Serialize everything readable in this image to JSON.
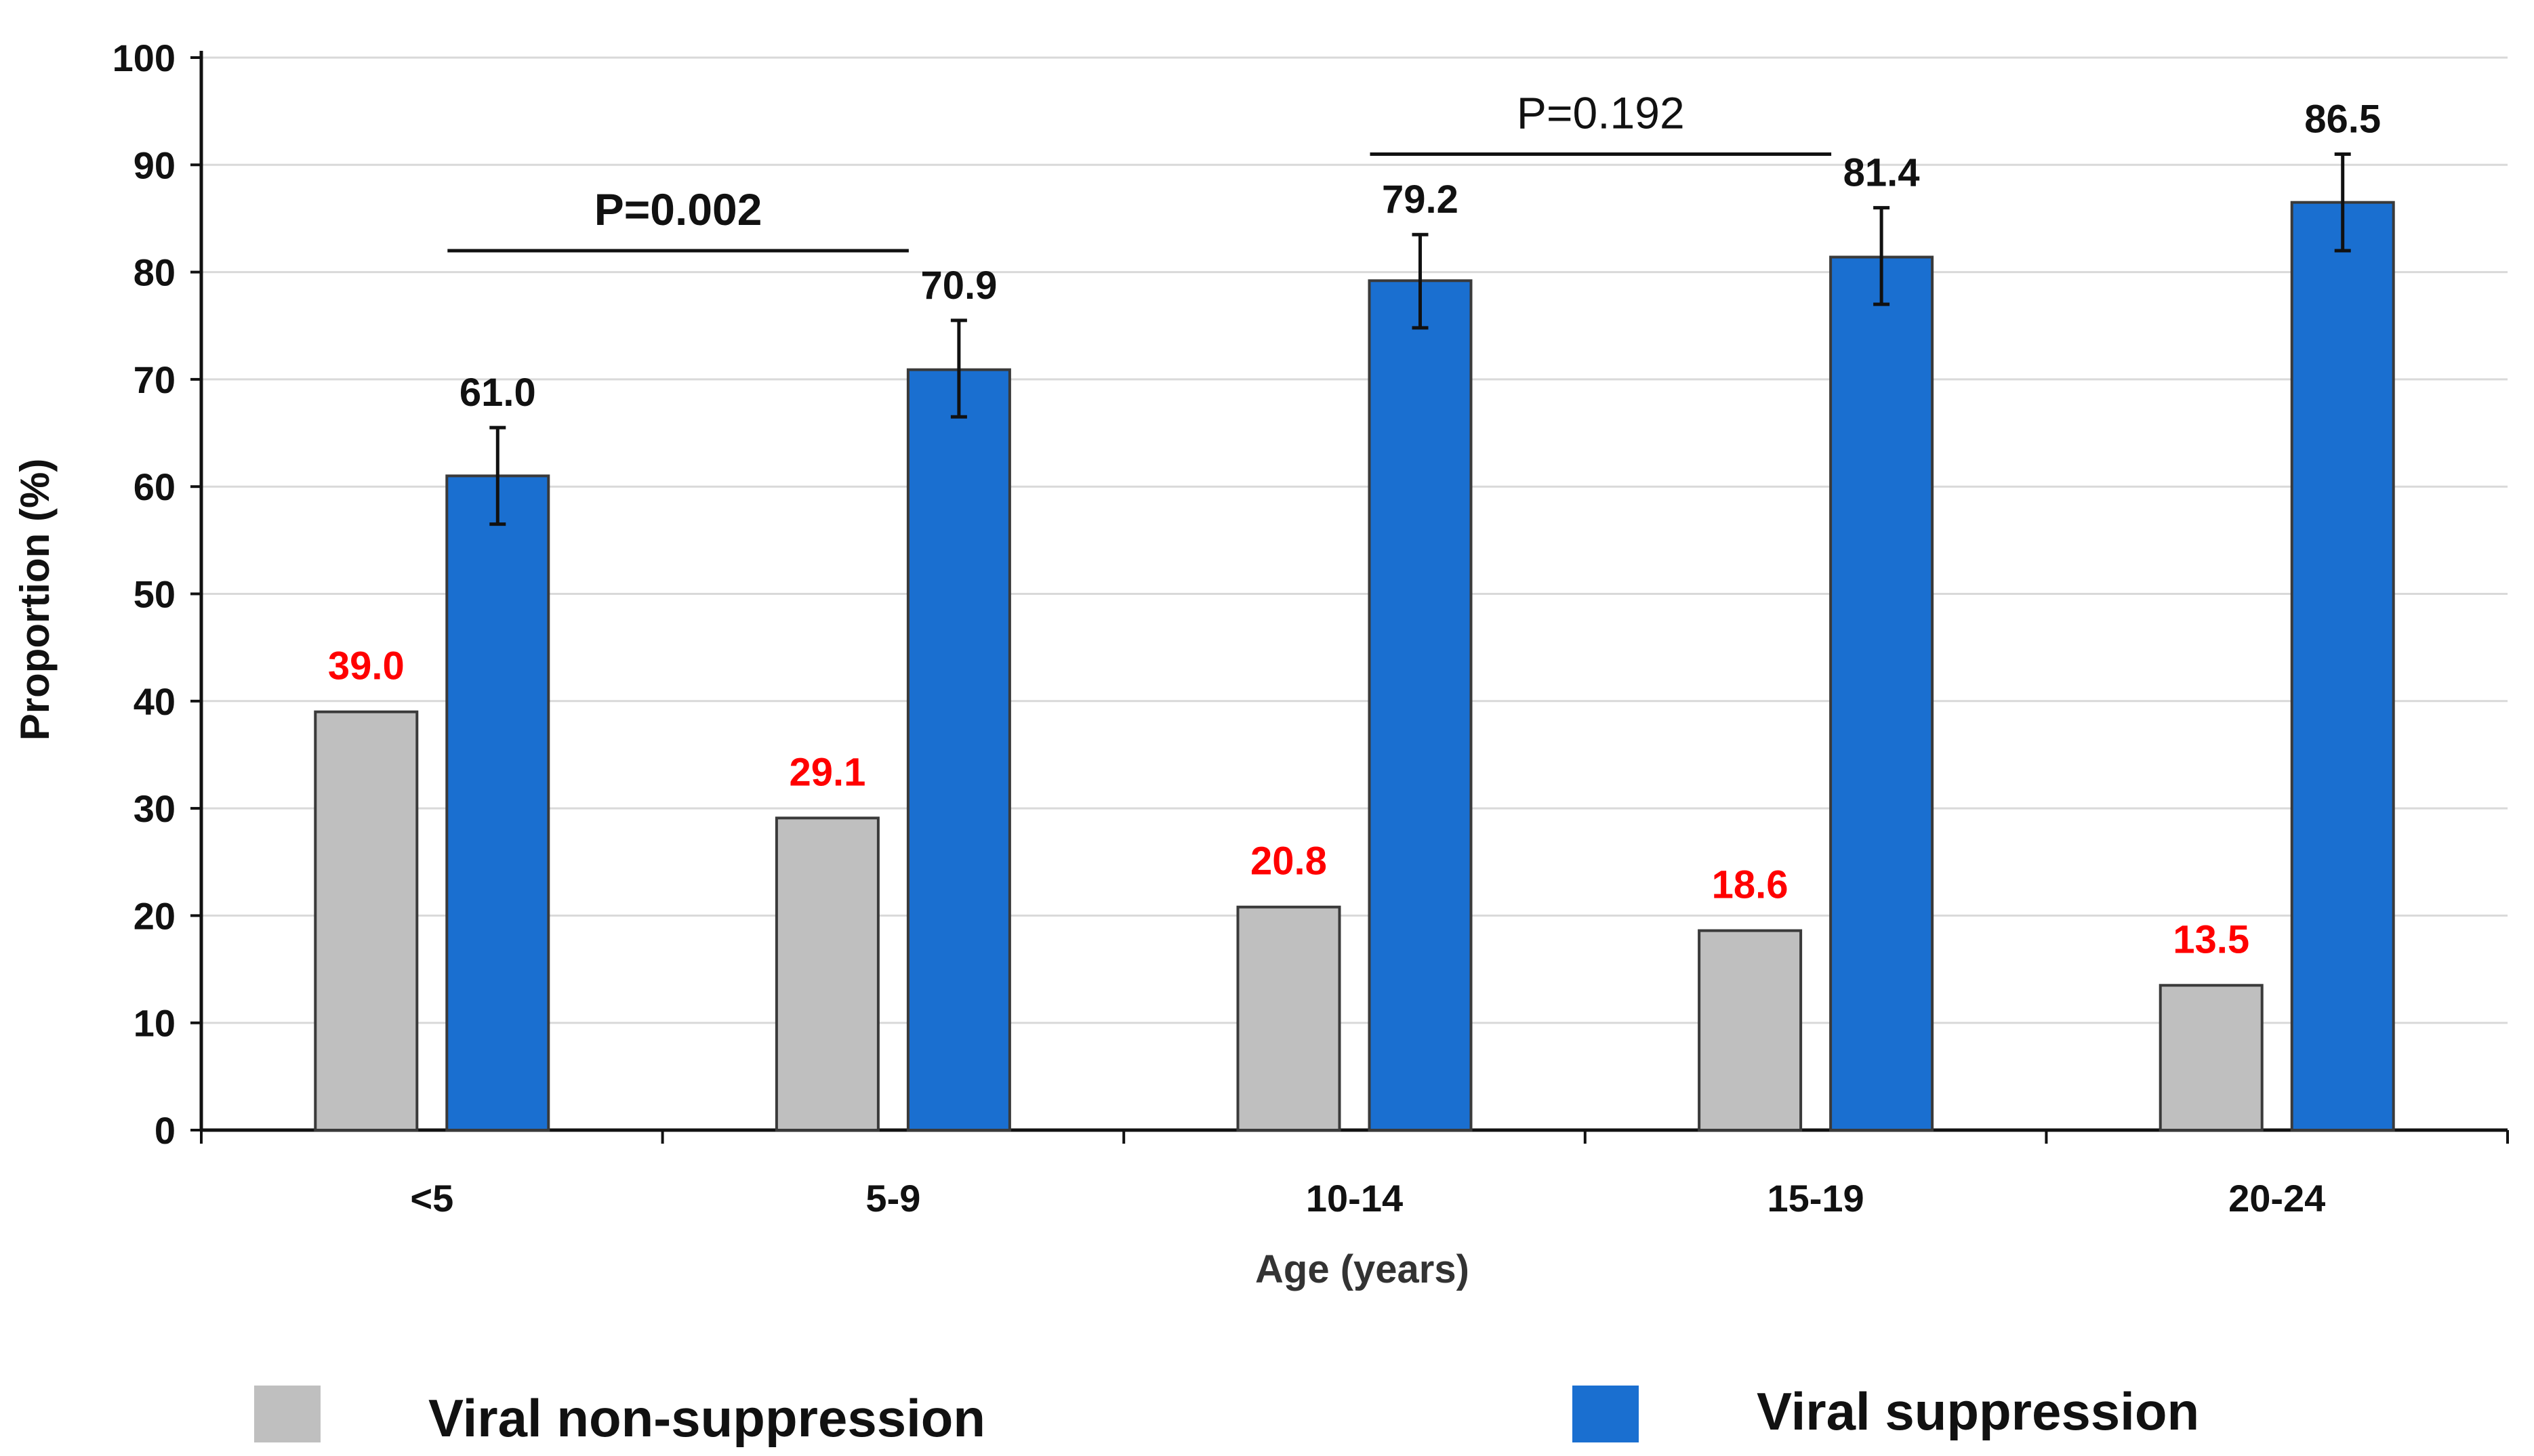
{
  "chart_data": {
    "type": "bar",
    "title": "",
    "xlabel": "Age (years)",
    "ylabel": "Proportion  (%)",
    "ylim": [
      0,
      100
    ],
    "yticks": [
      "0",
      "10",
      "20",
      "30",
      "40",
      "50",
      "60",
      "70",
      "80",
      "90",
      "100"
    ],
    "grid": true,
    "categories": [
      "<5",
      "5-9",
      "10-14",
      "15-19",
      "20-24"
    ],
    "series": [
      {
        "name": "Viral non-suppression",
        "color": "#bfbfbf",
        "label_color": "#ff0000",
        "values": [
          39.0,
          29.1,
          20.8,
          18.6,
          13.5
        ],
        "labels": [
          "39.0",
          "29.1",
          "20.8",
          "18.6",
          "13.5"
        ]
      },
      {
        "name": "Viral suppression",
        "color": "#1a6fd0",
        "label_color": "#111111",
        "values": [
          61.0,
          70.9,
          79.2,
          81.4,
          86.5
        ],
        "labels": [
          "61.0",
          "70.9",
          "79.2",
          "81.4",
          "86.5"
        ],
        "error_low": [
          56.5,
          66.5,
          74.8,
          77.0,
          82.0
        ],
        "error_high": [
          65.5,
          75.5,
          83.5,
          86.0,
          91.0
        ]
      }
    ],
    "comparisons": [
      {
        "label": "P=0.002",
        "from": "<5",
        "to": "5-9",
        "y": 82,
        "bold": true
      },
      {
        "label": "P=0.192",
        "from": "10-14",
        "to": "15-19",
        "y": 91,
        "bold": false
      }
    ],
    "legend": {
      "position": "bottom",
      "items": [
        "Viral non-suppression",
        "Viral suppression"
      ]
    }
  }
}
